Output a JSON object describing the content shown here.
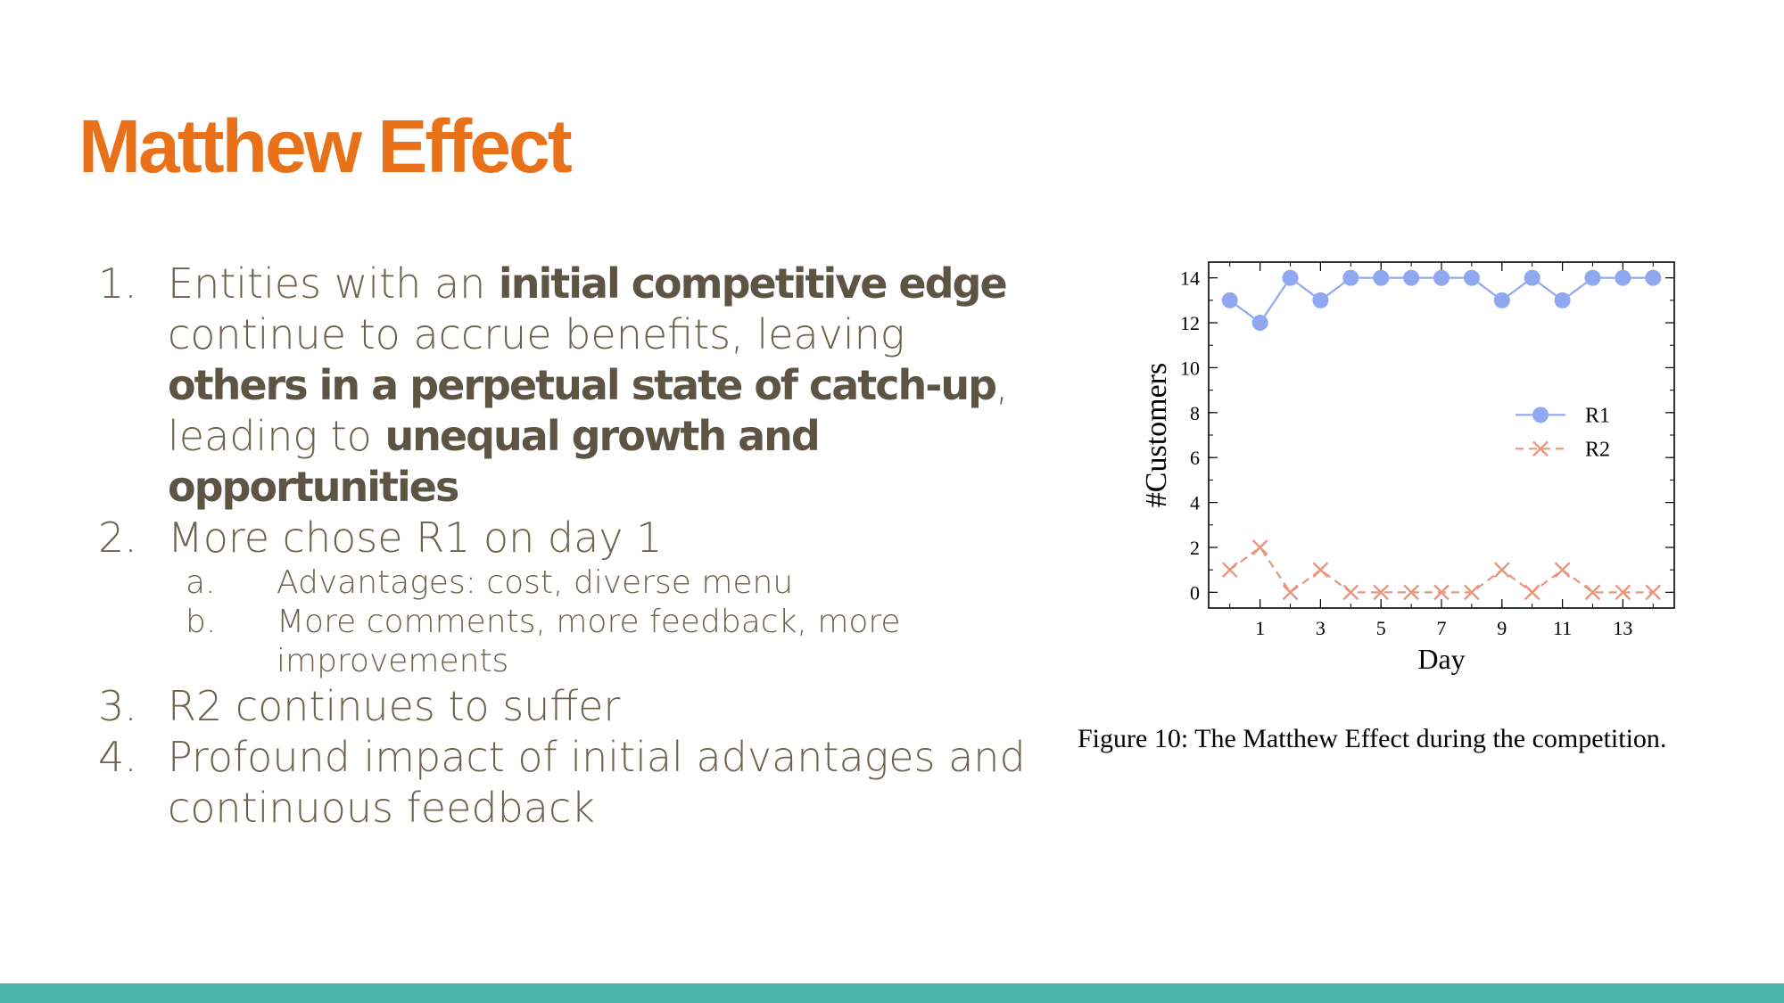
{
  "slide": {
    "title": "Matthew Effect"
  },
  "bullets": {
    "b1": {
      "num": "1.",
      "t1": "Entities with an ",
      "e1": "initial competitive edge",
      "t2": " continue to accrue benefits, leaving ",
      "e2": "others in a perpetual state of catch-up",
      "t3": ", leading to ",
      "e3": "unequal growth and opportunities"
    },
    "b2": {
      "num": "2.",
      "text": "More chose R1 on day 1",
      "a_num": "a.",
      "a_text": "Advantages: cost, diverse menu",
      "b_num": "b.",
      "b_text": "More comments, more feedback, more improvements"
    },
    "b3": {
      "num": "3.",
      "text": "R2 continues to suffer"
    },
    "b4": {
      "num": "4.",
      "text": "Profound impact of initial advantages and continuous feedback"
    }
  },
  "figure": {
    "caption": "Figure 10: The Matthew Effect during the competition."
  },
  "chart_data": {
    "type": "line",
    "xlabel": "Day",
    "ylabel": "#Customers",
    "xlim": [
      -0.7,
      14.7
    ],
    "ylim": [
      -0.7,
      14.7
    ],
    "xticks": [
      1,
      3,
      5,
      7,
      9,
      11,
      13
    ],
    "yticks": [
      0,
      2,
      4,
      6,
      8,
      10,
      12,
      14
    ],
    "x": [
      0,
      1,
      2,
      3,
      4,
      5,
      6,
      7,
      8,
      9,
      10,
      11,
      12,
      13,
      14
    ],
    "series": [
      {
        "name": "R1",
        "values": [
          13,
          12,
          14,
          13,
          14,
          14,
          14,
          14,
          14,
          13,
          14,
          13,
          14,
          14,
          14
        ],
        "color": "#8fa8ef",
        "marker": "circle",
        "dash": "solid"
      },
      {
        "name": "R2",
        "values": [
          1,
          2,
          0,
          1,
          0,
          0,
          0,
          0,
          0,
          1,
          0,
          1,
          0,
          0,
          0
        ],
        "color": "#e9967f",
        "marker": "x",
        "dash": "dashed"
      }
    ],
    "legend": "center-right",
    "grid": false
  },
  "theme": {
    "title_color": "#e8711a",
    "text_color": "#665d4e",
    "footer_color": "#4db6ac"
  }
}
